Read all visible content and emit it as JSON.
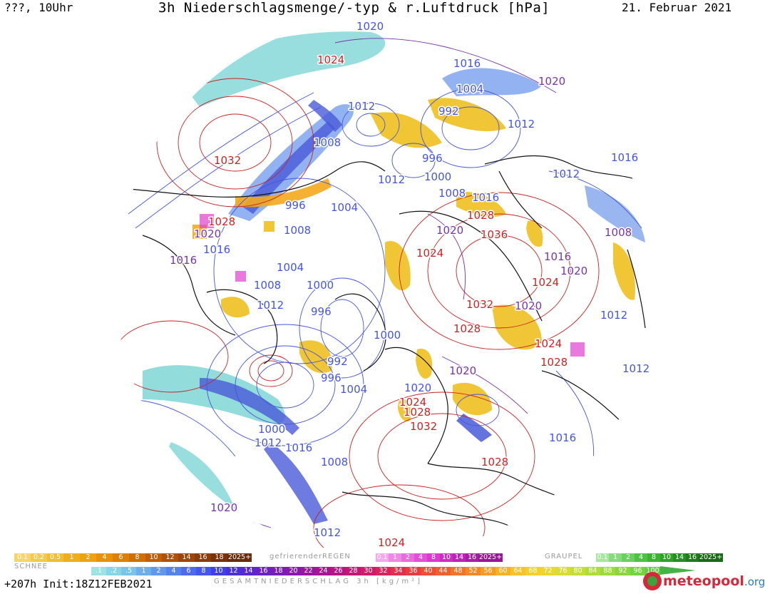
{
  "header": {
    "left": "???, 10Uhr",
    "title": "3h Niederschlagsmenge/-typ & r.Luftdruck [hPa]",
    "date": "21. Februar 2021"
  },
  "footer": {
    "forecast": "+207h  Init:18Z12FEB2021",
    "total_label": "GESAMTNIEDERSCHLAG 3h [kg/m²]",
    "logo_main": "meteopool",
    "logo_tld": ".org"
  },
  "colors": {
    "isobar_low": "#4455dd",
    "isobar_high": "#cc2222",
    "isobar_mid": "#7733aa",
    "snow": "#f0c020",
    "rain_cyan": "#7fd6d6",
    "rain_blue": "#4a5ad8",
    "freezing": "#e040d0",
    "graupel": "#3cb43c"
  },
  "legends": {
    "snow": {
      "label": "SCHNEE",
      "items": [
        "0.1",
        "0.2",
        "0.5",
        "1",
        "2",
        "4",
        "6",
        "8",
        "10",
        "12",
        "14",
        "16",
        "18",
        "2025+"
      ],
      "colors": [
        "#f7d56b",
        "#f4c94d",
        "#f1bd33",
        "#efae1c",
        "#eea20f",
        "#e8920b",
        "#dc8008",
        "#cf6f07",
        "#c05f07",
        "#b05208",
        "#9e4609",
        "#8c3b0a",
        "#7a320b",
        "#6b2a0b"
      ]
    },
    "freezing": {
      "label": "gefrierenderREGEN",
      "items": [
        "0.1",
        "1",
        "2",
        "4",
        "8",
        "10",
        "14",
        "16",
        "2025+"
      ],
      "colors": [
        "#f6a8ec",
        "#f088e6",
        "#ea6ae0",
        "#e24fd8",
        "#d93bcf",
        "#cc2ec4",
        "#bc24b8",
        "#aa1ca8",
        "#981696"
      ]
    },
    "graupel": {
      "label": "GRAUPEL",
      "items": [
        "0.1",
        "1",
        "2",
        "4",
        "8",
        "10",
        "14",
        "16",
        "2025+"
      ],
      "colors": [
        "#a6e8a0",
        "#86dc7c",
        "#68d05c",
        "#4ec343",
        "#3cb432",
        "#30a228",
        "#268f21",
        "#1e7c1b",
        "#176a16"
      ]
    },
    "total": {
      "items": [
        ".1",
        ".2",
        ".5",
        "1",
        "2",
        "4",
        "6",
        "8",
        "10",
        "12",
        "14",
        "16",
        "18",
        "20",
        "22",
        "24",
        "26",
        "28",
        "30",
        "32",
        "34",
        "36",
        "40",
        "44",
        "48",
        "52",
        "56",
        "60",
        "64",
        "68",
        "72",
        "76",
        "80",
        "84",
        "88",
        "92",
        "96",
        "100"
      ],
      "colors": [
        "#9ee3e3",
        "#86d6e6",
        "#7ac4e8",
        "#6eaeea",
        "#6298ec",
        "#5682ee",
        "#4c6ced",
        "#4556ea",
        "#3f40e6",
        "#4a30dc",
        "#5a28d2",
        "#6a22c8",
        "#7a1cbc",
        "#8a18ae",
        "#9a16a0",
        "#aa1492",
        "#b81484",
        "#c61676",
        "#d21a68",
        "#dc225a",
        "#e42e4c",
        "#ea3c3e",
        "#ee4e34",
        "#f0602c",
        "#f27426",
        "#f48824",
        "#f69c24",
        "#f8b026",
        "#f8c228",
        "#f4d02c",
        "#e8d830",
        "#d8dc34",
        "#c4de36",
        "#b0de38",
        "#9cdc3a",
        "#88d83c",
        "#74d43e",
        "#60ce40"
      ]
    }
  },
  "isobars": [
    {
      "text": "1020",
      "kind": "low"
    },
    {
      "text": "1024",
      "kind": "high"
    },
    {
      "text": "1016",
      "kind": "low"
    },
    {
      "text": "1020",
      "kind": "mid"
    },
    {
      "text": "1004",
      "kind": "low"
    },
    {
      "text": "1012",
      "kind": "low"
    },
    {
      "text": "992",
      "kind": "low"
    },
    {
      "text": "1012",
      "kind": "low"
    },
    {
      "text": "1008",
      "kind": "low"
    },
    {
      "text": "996",
      "kind": "low"
    },
    {
      "text": "1032",
      "kind": "high"
    },
    {
      "text": "1012",
      "kind": "low"
    },
    {
      "text": "1000",
      "kind": "low"
    },
    {
      "text": "1016",
      "kind": "low"
    },
    {
      "text": "1012",
      "kind": "low"
    },
    {
      "text": "1008",
      "kind": "low"
    },
    {
      "text": "1016",
      "kind": "low"
    },
    {
      "text": "996",
      "kind": "low"
    },
    {
      "text": "1004",
      "kind": "low"
    },
    {
      "text": "1028",
      "kind": "high"
    },
    {
      "text": "1028",
      "kind": "high"
    },
    {
      "text": "1020",
      "kind": "mid"
    },
    {
      "text": "1020",
      "kind": "mid"
    },
    {
      "text": "1008",
      "kind": "low"
    },
    {
      "text": "1036",
      "kind": "high"
    },
    {
      "text": "1008",
      "kind": "mid"
    },
    {
      "text": "1016",
      "kind": "low"
    },
    {
      "text": "1024",
      "kind": "high"
    },
    {
      "text": "1016",
      "kind": "mid"
    },
    {
      "text": "1016",
      "kind": "mid"
    },
    {
      "text": "1020",
      "kind": "mid"
    },
    {
      "text": "1004",
      "kind": "low"
    },
    {
      "text": "1024",
      "kind": "high"
    },
    {
      "text": "1008",
      "kind": "low"
    },
    {
      "text": "1000",
      "kind": "low"
    },
    {
      "text": "1012",
      "kind": "low"
    },
    {
      "text": "996",
      "kind": "low"
    },
    {
      "text": "1032",
      "kind": "high"
    },
    {
      "text": "1020",
      "kind": "mid"
    },
    {
      "text": "1012",
      "kind": "low"
    },
    {
      "text": "1028",
      "kind": "high"
    },
    {
      "text": "1000",
      "kind": "low"
    },
    {
      "text": "1024",
      "kind": "high"
    },
    {
      "text": "992",
      "kind": "low"
    },
    {
      "text": "996",
      "kind": "low"
    },
    {
      "text": "1004",
      "kind": "low"
    },
    {
      "text": "1028",
      "kind": "high"
    },
    {
      "text": "1020",
      "kind": "mid"
    },
    {
      "text": "1012",
      "kind": "low"
    },
    {
      "text": "1020",
      "kind": "low"
    },
    {
      "text": "1024",
      "kind": "high"
    },
    {
      "text": "1028",
      "kind": "high"
    },
    {
      "text": "1032",
      "kind": "high"
    },
    {
      "text": "1000",
      "kind": "low"
    },
    {
      "text": "1012",
      "kind": "low"
    },
    {
      "text": "1016",
      "kind": "low"
    },
    {
      "text": "1008",
      "kind": "low"
    },
    {
      "text": "1028",
      "kind": "high"
    },
    {
      "text": "1016",
      "kind": "low"
    },
    {
      "text": "1020",
      "kind": "mid"
    },
    {
      "text": "1012",
      "kind": "low"
    },
    {
      "text": "1024",
      "kind": "high"
    }
  ]
}
